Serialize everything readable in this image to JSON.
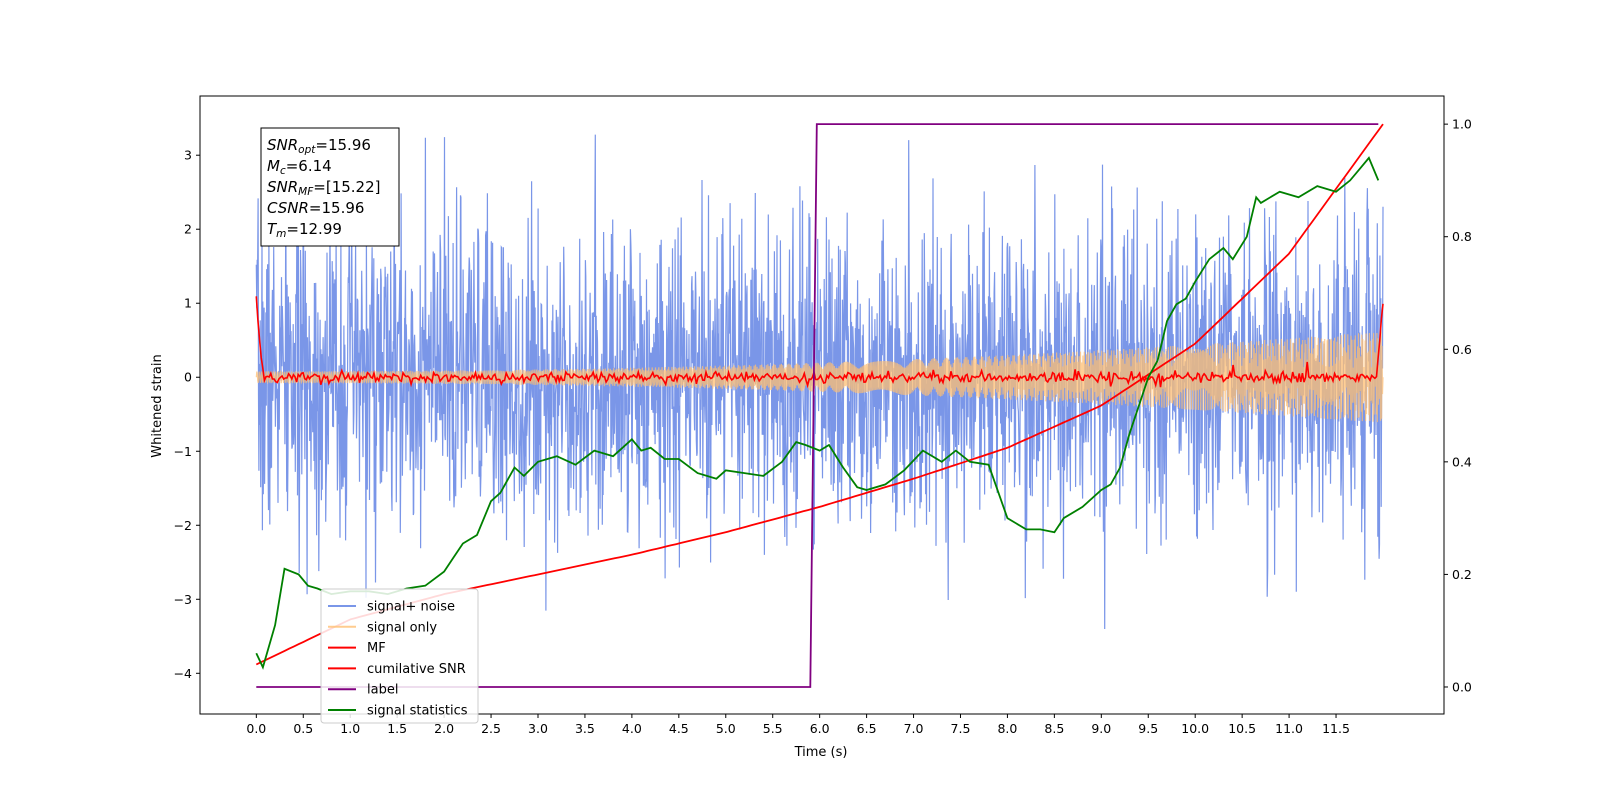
{
  "chart_data": {
    "type": "line",
    "xlabel": "Time (s)",
    "ylabel_left": "Whitened strain",
    "ylabel_right": "",
    "xlim": [
      -0.6,
      12.65
    ],
    "ylim_left": [
      -4.55,
      3.8
    ],
    "ylim_right": [
      -0.048,
      1.05
    ],
    "x_ticks": [
      "0.0",
      "0.5",
      "1.0",
      "1.5",
      "2.0",
      "2.5",
      "3.0",
      "3.5",
      "4.0",
      "4.5",
      "5.0",
      "5.5",
      "6.0",
      "6.5",
      "7.0",
      "7.5",
      "8.0",
      "8.5",
      "9.0",
      "9.5",
      "10.0",
      "10.5",
      "11.0",
      "11.5"
    ],
    "y_ticks_left": [
      "3",
      "2",
      "1",
      "0",
      "−1",
      "−2",
      "−3",
      "−4"
    ],
    "y_ticks_right": [
      "1.0",
      "0.8",
      "0.6",
      "0.4",
      "0.2",
      "0.0"
    ],
    "grid": false,
    "legend_position": "lower-left",
    "annotation": {
      "lines": [
        {
          "symbol": "SNR",
          "sub": "opt",
          "value": "=15.96"
        },
        {
          "symbol": "M",
          "sub": "c",
          "value": "=6.14"
        },
        {
          "symbol": "SNR",
          "sub": "MF",
          "value": "=[15.22]"
        },
        {
          "symbol": "CSNR",
          "sub": "",
          "value": "=15.96"
        },
        {
          "symbol": "T",
          "sub": "m",
          "value": "=12.99"
        }
      ]
    },
    "series": [
      {
        "name": "signal+ noise",
        "axis": "left",
        "color": "#7a96e8",
        "kind": "noise",
        "x_range": [
          0.0,
          12.0
        ],
        "approx_range": [
          -4.15,
          3.4
        ]
      },
      {
        "name": "signal only",
        "axis": "left",
        "color": "#ffbf73",
        "kind": "chirp",
        "x_range": [
          0.0,
          12.0
        ],
        "amplitude_start": 0.08,
        "amplitude_end": 0.62
      },
      {
        "name": "MF",
        "axis": "left",
        "color": "#ff0000",
        "kind": "matched-filter",
        "x_range": [
          0.0,
          12.0
        ],
        "edge_value": 1.0
      },
      {
        "name": "cumilative SNR",
        "axis": "right",
        "color": "#ff0000",
        "x": [
          0.0,
          1.0,
          2.0,
          3.0,
          4.0,
          5.0,
          6.0,
          7.0,
          8.0,
          9.0,
          10.0,
          11.0,
          12.0
        ],
        "y": [
          0.04,
          0.12,
          0.165,
          0.2,
          0.235,
          0.275,
          0.32,
          0.37,
          0.425,
          0.5,
          0.61,
          0.77,
          1.0
        ]
      },
      {
        "name": "label",
        "axis": "right",
        "color": "#800080",
        "x": [
          0.0,
          5.9,
          5.97,
          11.95
        ],
        "y": [
          0.0,
          0.0,
          1.0,
          1.0
        ]
      },
      {
        "name": "signal statistics",
        "axis": "right",
        "color": "#008000",
        "x": [
          0.0,
          0.07,
          0.2,
          0.3,
          0.45,
          0.55,
          0.65,
          0.8,
          1.0,
          1.2,
          1.4,
          1.6,
          1.8,
          2.0,
          2.1,
          2.2,
          2.35,
          2.5,
          2.6,
          2.75,
          2.85,
          3.0,
          3.2,
          3.4,
          3.6,
          3.8,
          4.0,
          4.1,
          4.2,
          4.35,
          4.5,
          4.7,
          4.9,
          5.0,
          5.2,
          5.4,
          5.6,
          5.75,
          5.85,
          6.0,
          6.1,
          6.25,
          6.4,
          6.5,
          6.7,
          6.9,
          7.1,
          7.3,
          7.45,
          7.6,
          7.8,
          8.0,
          8.2,
          8.35,
          8.5,
          8.6,
          8.8,
          9.0,
          9.1,
          9.2,
          9.3,
          9.4,
          9.5,
          9.6,
          9.7,
          9.8,
          9.9,
          10.0,
          10.15,
          10.3,
          10.4,
          10.55,
          10.65,
          10.7,
          10.9,
          11.1,
          11.3,
          11.5,
          11.65,
          11.75,
          11.85,
          11.95
        ],
        "y": [
          0.06,
          0.035,
          0.11,
          0.21,
          0.2,
          0.18,
          0.175,
          0.165,
          0.17,
          0.17,
          0.165,
          0.175,
          0.18,
          0.205,
          0.23,
          0.255,
          0.27,
          0.33,
          0.345,
          0.39,
          0.375,
          0.4,
          0.41,
          0.395,
          0.42,
          0.41,
          0.44,
          0.42,
          0.425,
          0.405,
          0.405,
          0.38,
          0.37,
          0.385,
          0.38,
          0.375,
          0.4,
          0.435,
          0.43,
          0.42,
          0.43,
          0.39,
          0.355,
          0.35,
          0.36,
          0.385,
          0.42,
          0.4,
          0.42,
          0.4,
          0.395,
          0.3,
          0.28,
          0.28,
          0.275,
          0.3,
          0.32,
          0.35,
          0.36,
          0.39,
          0.45,
          0.5,
          0.55,
          0.58,
          0.65,
          0.68,
          0.69,
          0.72,
          0.76,
          0.78,
          0.76,
          0.8,
          0.87,
          0.86,
          0.88,
          0.87,
          0.89,
          0.88,
          0.9,
          0.92,
          0.94,
          0.9
        ]
      }
    ]
  }
}
